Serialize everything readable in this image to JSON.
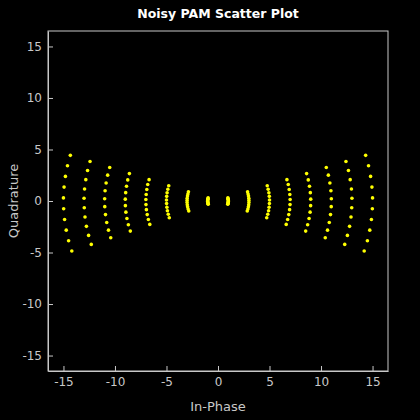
{
  "chart_data": {
    "type": "scatter",
    "title": "Noisy PAM Scatter Plot",
    "x_label": "In-Phase",
    "y_label": "Quadrature",
    "color": "#ffff00",
    "marker": "dot",
    "xlim": [
      -16.5,
      16.5
    ],
    "ylim": [
      -16.5,
      16.5
    ],
    "xticks": [
      -15,
      -10,
      -5,
      0,
      5,
      10,
      15
    ],
    "yticks": [
      -15,
      -10,
      -5,
      0,
      5,
      10,
      15
    ],
    "x": [
      -14.19,
      -14.5,
      -14.73,
      -14.89,
      -14.98,
      -15,
      -14.94,
      -14.81,
      -14.61,
      -14.33,
      -12.3,
      -12.56,
      -12.77,
      -12.91,
      -12.98,
      -13,
      -12.95,
      -12.83,
      -12.66,
      -12.42,
      -10.41,
      -10.63,
      -10.8,
      -10.92,
      -10.99,
      -11,
      -10.96,
      -10.86,
      -10.71,
      -10.51,
      -8.51,
      -8.7,
      -8.84,
      -8.94,
      -8.99,
      -9,
      -8.96,
      -8.88,
      -8.76,
      -8.6,
      -6.62,
      -6.76,
      -6.87,
      -6.95,
      -6.99,
      -7,
      -6.97,
      -6.91,
      -6.82,
      -6.69,
      -4.73,
      -4.83,
      -4.91,
      -4.96,
      -4.99,
      -5,
      -4.98,
      -4.94,
      -4.87,
      -4.78,
      -2.84,
      -2.9,
      -2.95,
      -2.98,
      -3,
      -3,
      -2.99,
      -2.96,
      -2.92,
      -2.87,
      -0.95,
      -0.97,
      -0.98,
      -0.99,
      -1,
      -1,
      -1,
      -0.99,
      -0.97,
      -0.96,
      0.95,
      0.97,
      0.98,
      0.99,
      1,
      1,
      1,
      0.99,
      0.97,
      0.96,
      2.84,
      2.9,
      2.95,
      2.98,
      3,
      3,
      2.99,
      2.96,
      2.92,
      2.87,
      4.73,
      4.83,
      4.91,
      4.96,
      4.99,
      5,
      4.98,
      4.94,
      4.87,
      4.78,
      6.62,
      6.76,
      6.87,
      6.95,
      6.99,
      7,
      6.97,
      6.91,
      6.82,
      6.69,
      8.51,
      8.7,
      8.84,
      8.94,
      8.99,
      9,
      8.96,
      8.88,
      8.76,
      8.6,
      10.41,
      10.63,
      10.8,
      10.92,
      10.99,
      11,
      10.96,
      10.86,
      10.71,
      10.51,
      12.3,
      12.56,
      12.77,
      12.91,
      12.98,
      13,
      12.95,
      12.83,
      12.66,
      12.42,
      14.19,
      14.5,
      14.73,
      14.89,
      14.98,
      15,
      14.94,
      14.81,
      14.61,
      14.33
    ],
    "values": [
      -4.86,
      -3.86,
      -2.83,
      -1.8,
      -0.75,
      0.3,
      1.35,
      2.39,
      3.42,
      4.43,
      -4.21,
      -3.34,
      -2.46,
      -1.56,
      -0.65,
      0.26,
      1.17,
      2.07,
      2.96,
      3.84,
      -3.56,
      -2.83,
      -2.08,
      -1.32,
      -0.55,
      0.22,
      0.99,
      1.75,
      2.51,
      3.25,
      -2.92,
      -2.31,
      -1.7,
      -1.08,
      -0.45,
      0.18,
      0.81,
      1.43,
      2.05,
      2.66,
      -2.27,
      -1.8,
      -1.32,
      -0.84,
      -0.35,
      0.14,
      0.63,
      1.12,
      1.6,
      2.07,
      -1.62,
      -1.29,
      -0.94,
      -0.6,
      -0.25,
      0.1,
      0.45,
      0.8,
      1.14,
      1.48,
      -0.97,
      -0.77,
      -0.57,
      -0.36,
      -0.15,
      0.06,
      0.27,
      0.48,
      0.68,
      0.89,
      -0.32,
      -0.26,
      -0.19,
      -0.12,
      -0.05,
      0.02,
      0.09,
      0.16,
      0.23,
      0.3,
      -0.32,
      -0.26,
      -0.19,
      -0.12,
      -0.05,
      0.02,
      0.09,
      0.16,
      0.23,
      0.3,
      -0.97,
      -0.77,
      -0.57,
      -0.36,
      -0.15,
      0.06,
      0.27,
      0.48,
      0.68,
      0.89,
      -1.62,
      -1.29,
      -0.94,
      -0.6,
      -0.25,
      0.1,
      0.45,
      0.8,
      1.14,
      1.48,
      -2.27,
      -1.8,
      -1.32,
      -0.84,
      -0.35,
      0.14,
      0.63,
      1.12,
      1.6,
      2.07,
      -2.92,
      -2.31,
      -1.7,
      -1.08,
      -0.45,
      0.18,
      0.81,
      1.43,
      2.05,
      2.66,
      -3.56,
      -2.83,
      -2.08,
      -1.32,
      -0.55,
      0.22,
      0.99,
      1.75,
      2.51,
      3.25,
      -4.21,
      -3.34,
      -2.46,
      -1.56,
      -0.65,
      0.26,
      1.17,
      2.07,
      2.96,
      3.84,
      -4.86,
      -3.86,
      -2.83,
      -1.8,
      -0.75,
      0.3,
      1.35,
      2.39,
      3.42,
      4.43
    ]
  }
}
